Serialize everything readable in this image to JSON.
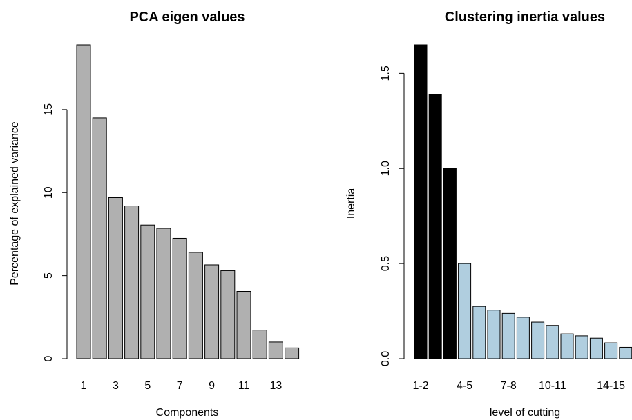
{
  "chart_data": [
    {
      "type": "bar",
      "title": "PCA eigen values",
      "xlabel": "Components",
      "ylabel": "Percentage of explained variance",
      "categories": [
        "1",
        "2",
        "3",
        "4",
        "5",
        "6",
        "7",
        "8",
        "9",
        "10",
        "11",
        "12",
        "13",
        "14"
      ],
      "values": [
        18.9,
        14.5,
        9.7,
        9.2,
        8.05,
        7.85,
        7.25,
        6.4,
        5.65,
        5.3,
        4.05,
        1.72,
        1.0,
        0.65
      ],
      "x_tick_labels": [
        "1",
        "",
        "3",
        "",
        "5",
        "",
        "7",
        "",
        "9",
        "",
        "11",
        "",
        "13",
        ""
      ],
      "y_ticks": [
        0,
        5,
        10,
        15
      ],
      "y_tick_labels": [
        "0",
        "5",
        "10",
        "15"
      ],
      "ylim": [
        0,
        18.9
      ],
      "bar_color": "#b0b0b0",
      "grid": false,
      "legend": "none"
    },
    {
      "type": "bar",
      "title": "Clustering inertia values",
      "xlabel": "level of cutting",
      "ylabel": "Inertia",
      "categories": [
        "1-2",
        "2-3",
        "3-4",
        "4-5",
        "5-6",
        "6-7",
        "7-8",
        "8-9",
        "9-10",
        "10-11",
        "11-12",
        "12-13",
        "13-14",
        "14-15",
        "15-16"
      ],
      "values": [
        1.65,
        1.39,
        1.0,
        0.5,
        0.275,
        0.255,
        0.238,
        0.218,
        0.192,
        0.175,
        0.13,
        0.12,
        0.108,
        0.083,
        0.06
      ],
      "x_tick_labels": [
        "1-2",
        "",
        "",
        "4-5",
        "",
        "",
        "7-8",
        "",
        "",
        "10-11",
        "",
        "",
        "",
        "14-15",
        ""
      ],
      "y_ticks": [
        0.0,
        0.5,
        1.0,
        1.5
      ],
      "y_tick_labels": [
        "0.0",
        "0.5",
        "1.0",
        "1.5"
      ],
      "ylim": [
        0,
        1.65
      ],
      "bar_colors": [
        "#000000",
        "#000000",
        "#000000",
        "#b0cedf",
        "#b0cedf",
        "#b0cedf",
        "#b0cedf",
        "#b0cedf",
        "#b0cedf",
        "#b0cedf",
        "#b0cedf",
        "#b0cedf",
        "#b0cedf",
        "#b0cedf",
        "#b0cedf"
      ],
      "grid": false,
      "legend": "none"
    }
  ]
}
